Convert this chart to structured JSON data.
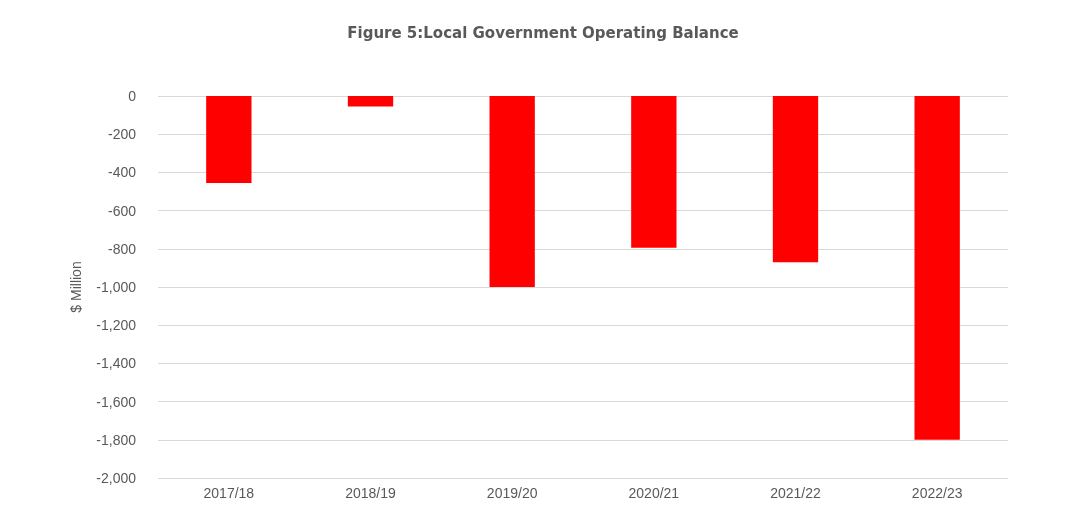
{
  "chart_data": {
    "type": "bar",
    "title": "Figure 5:Local Government Operating Balance",
    "ylabel": "$ Million",
    "categories": [
      "2017/18",
      "2018/19",
      "2019/20",
      "2020/21",
      "2021/22",
      "2022/23"
    ],
    "values": [
      -455,
      -55,
      -1000,
      -795,
      -870,
      -1800
    ],
    "color": "#ff0000",
    "ylim": [
      -2000,
      0
    ],
    "yticks": [
      {
        "value": 0,
        "label": "0"
      },
      {
        "value": -200,
        "label": "-200"
      },
      {
        "value": -400,
        "label": "-400"
      },
      {
        "value": -600,
        "label": "-600"
      },
      {
        "value": -800,
        "label": "-800"
      },
      {
        "value": -1000,
        "label": "-1,000"
      },
      {
        "value": -1200,
        "label": "-1,200"
      },
      {
        "value": -1400,
        "label": "-1,400"
      },
      {
        "value": -1600,
        "label": "-1,600"
      },
      {
        "value": -1800,
        "label": "-1,800"
      },
      {
        "value": -2000,
        "label": "-2,000"
      }
    ],
    "grid": "y"
  }
}
